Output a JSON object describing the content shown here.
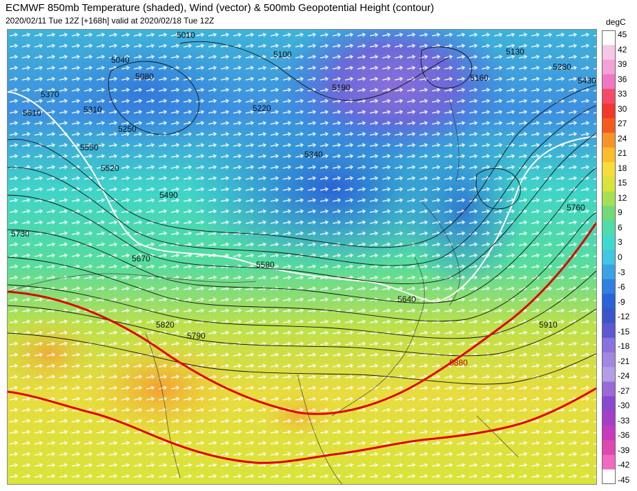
{
  "header": {
    "title": "ECMWF 850mb Temperature (shaded), Wind (vector) & 500mb Geopotential Height (contour)",
    "subtitle": "2020/02/11 Tue 12Z [+168h] valid at 2020/02/18 Tue 12Z"
  },
  "colorbar": {
    "unit": "degC",
    "ticks": [
      "45",
      "42",
      "39",
      "36",
      "33",
      "30",
      "27",
      "24",
      "21",
      "18",
      "15",
      "12",
      "9",
      "6",
      "3",
      "0",
      "-3",
      "-6",
      "-9",
      "-12",
      "-15",
      "-18",
      "-21",
      "-24",
      "-27",
      "-30",
      "-33",
      "-36",
      "-39",
      "-42",
      "-45"
    ],
    "colors": [
      "#ffffff",
      "#f7c8e6",
      "#f2a2d6",
      "#ee78c3",
      "#f44b6a",
      "#f0382c",
      "#f45a1d",
      "#f8922a",
      "#fbbd2c",
      "#f6dd3c",
      "#d8e43a",
      "#a6e050",
      "#73da7a",
      "#4fdca8",
      "#3fd9cf",
      "#41c6e3",
      "#3aa3e6",
      "#2f80e0",
      "#2a63d6",
      "#3a55cc",
      "#5b58d4",
      "#8a72dc",
      "#a088e0",
      "#b39ee6",
      "#9a6ad8",
      "#8a47d0",
      "#a53ec8",
      "#c63abe",
      "#e047b0",
      "#f06ac0",
      "#ffffff"
    ]
  },
  "map": {
    "contour_labels": [
      {
        "value": "5010"
      },
      {
        "value": "5040"
      },
      {
        "value": "5080"
      },
      {
        "value": "5100"
      },
      {
        "value": "5130"
      },
      {
        "value": "5190"
      },
      {
        "value": "5160"
      },
      {
        "value": "5280"
      },
      {
        "value": "5430"
      },
      {
        "value": "5370"
      },
      {
        "value": "5310"
      },
      {
        "value": "5250"
      },
      {
        "value": "5220"
      },
      {
        "value": "5340"
      },
      {
        "value": "5610"
      },
      {
        "value": "5550"
      },
      {
        "value": "5520"
      },
      {
        "value": "5490"
      },
      {
        "value": "5640"
      },
      {
        "value": "5730"
      },
      {
        "value": "5670"
      },
      {
        "value": "5580"
      },
      {
        "value": "5760"
      },
      {
        "value": "5820"
      },
      {
        "value": "5790"
      },
      {
        "value": "5880"
      },
      {
        "value": "5910"
      }
    ]
  }
}
